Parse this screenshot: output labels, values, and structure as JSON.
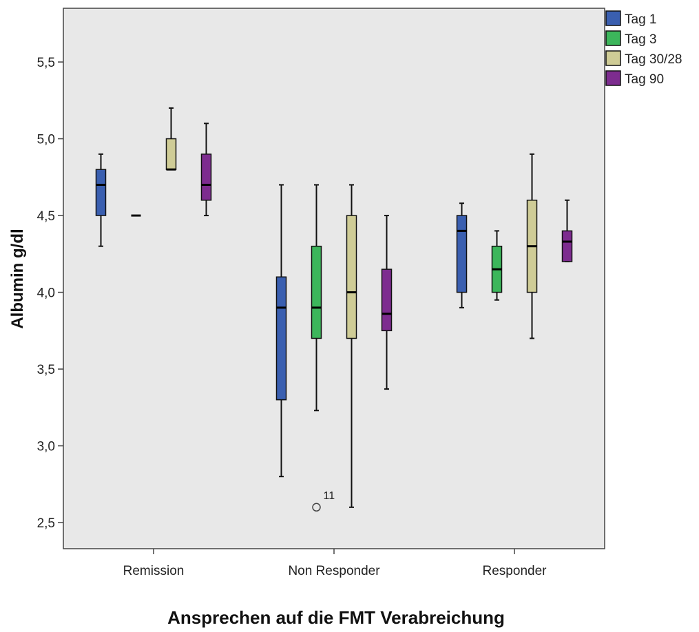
{
  "chart_data": {
    "type": "boxplot",
    "xlabel": "Ansprechen auf die FMT Verabreichung",
    "ylabel": "Albumin g/dl",
    "ylim": [
      2.33,
      5.85
    ],
    "yticks": [
      2.5,
      3.0,
      3.5,
      4.0,
      4.5,
      5.0,
      5.5
    ],
    "ytick_labels": [
      "2,5",
      "3,0",
      "3,5",
      "4,0",
      "4,5",
      "5,0",
      "5,5"
    ],
    "categories": [
      "Remission",
      "Non Responder",
      "Responder"
    ],
    "legend_position": "top-right",
    "series": [
      {
        "name": "Tag 1",
        "color": "#3a5fb0",
        "boxes": [
          {
            "min": 4.3,
            "q1": 4.5,
            "median": 4.7,
            "q3": 4.8,
            "max": 4.9
          },
          {
            "min": 2.8,
            "q1": 3.3,
            "median": 3.9,
            "q3": 4.1,
            "max": 4.7
          },
          {
            "min": 3.9,
            "q1": 4.0,
            "median": 4.4,
            "q3": 4.5,
            "max": 4.58
          }
        ]
      },
      {
        "name": "Tag 3",
        "color": "#3cb65b",
        "boxes": [
          {
            "min": 4.5,
            "q1": 4.5,
            "median": 4.5,
            "q3": 4.5,
            "max": 4.5
          },
          {
            "min": 3.23,
            "q1": 3.7,
            "median": 3.9,
            "q3": 4.3,
            "max": 4.7,
            "outliers": [
              {
                "value": 2.6,
                "label": "11"
              }
            ]
          },
          {
            "min": 3.95,
            "q1": 4.0,
            "median": 4.15,
            "q3": 4.3,
            "max": 4.4
          }
        ]
      },
      {
        "name": "Tag 30/28",
        "color": "#cfcc96",
        "boxes": [
          {
            "min": 4.8,
            "q1": 4.8,
            "median": 4.8,
            "q3": 5.0,
            "max": 5.2
          },
          {
            "min": 2.6,
            "q1": 3.7,
            "median": 4.0,
            "q3": 4.5,
            "max": 4.7
          },
          {
            "min": 3.7,
            "q1": 4.0,
            "median": 4.3,
            "q3": 4.6,
            "max": 4.9
          }
        ]
      },
      {
        "name": "Tag 90",
        "color": "#7d2c8f",
        "boxes": [
          {
            "min": 4.5,
            "q1": 4.6,
            "median": 4.7,
            "q3": 4.9,
            "max": 5.1
          },
          {
            "min": 3.37,
            "q1": 3.75,
            "median": 3.86,
            "q3": 4.15,
            "max": 4.5
          },
          {
            "min": 4.2,
            "q1": 4.2,
            "median": 4.33,
            "q3": 4.4,
            "max": 4.6
          }
        ]
      }
    ]
  }
}
